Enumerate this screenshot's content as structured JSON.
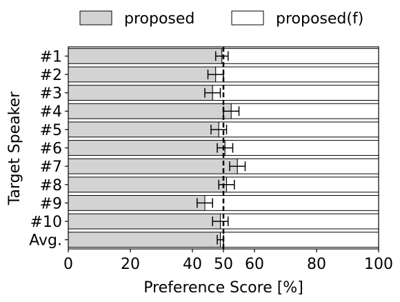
{
  "chart_data": {
    "type": "bar",
    "orientation": "horizontal",
    "stacked": true,
    "title": "",
    "xlabel": "Preference Score [%]",
    "ylabel": "Target Speaker",
    "xlim": [
      0,
      100
    ],
    "xticks": [
      0,
      20,
      40,
      50,
      60,
      80,
      100
    ],
    "reference_line": 50,
    "grid": false,
    "legend_position": "top",
    "categories": [
      "#1",
      "#2",
      "#3",
      "#4",
      "#5",
      "#6",
      "#7",
      "#8",
      "#9",
      "#10",
      "Avg."
    ],
    "series": [
      {
        "name": "proposed",
        "color": "#d3d3d3",
        "values": [
          49.5,
          47.5,
          46.5,
          52.5,
          48.5,
          50.5,
          54.5,
          51.0,
          44.0,
          49.0,
          49.0
        ],
        "error": [
          2.0,
          2.5,
          2.5,
          2.5,
          2.5,
          2.5,
          2.5,
          2.5,
          2.5,
          2.5,
          1.0
        ]
      },
      {
        "name": "proposed(f)",
        "color": "#ffffff",
        "values": [
          50.5,
          52.5,
          53.5,
          47.5,
          51.5,
          49.5,
          45.5,
          49.0,
          56.0,
          51.0,
          51.0
        ]
      }
    ]
  }
}
